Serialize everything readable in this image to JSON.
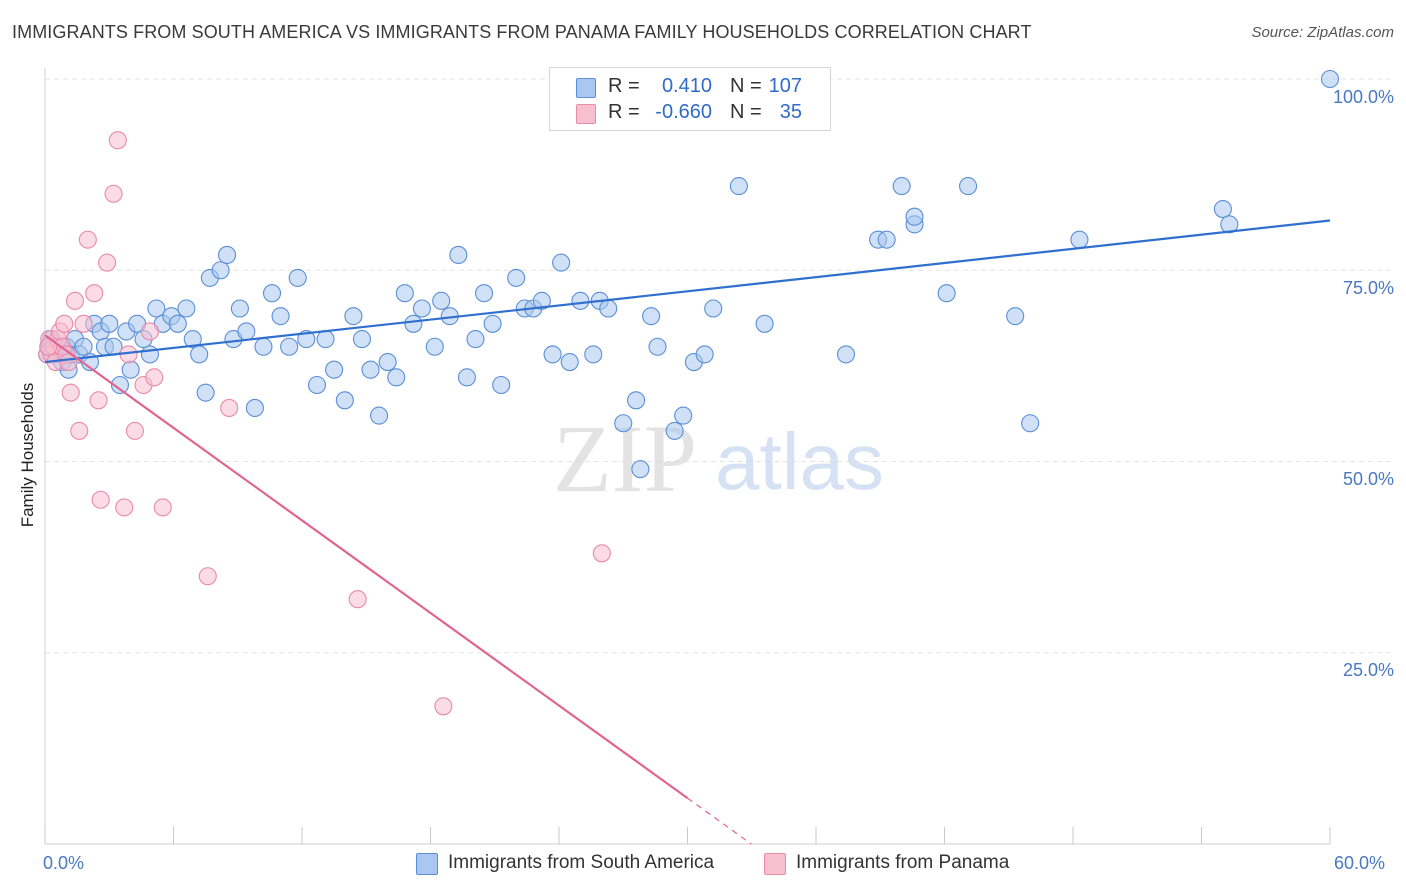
{
  "title": "IMMIGRANTS FROM SOUTH AMERICA VS IMMIGRANTS FROM PANAMA FAMILY HOUSEHOLDS CORRELATION CHART",
  "source": "Source: ZipAtlas.com",
  "watermark": {
    "zip": "ZIP",
    "atlas": "atlas"
  },
  "colors": {
    "blue_fill": "#a9c7ef",
    "blue_stroke": "#5a8fd6",
    "blue_line": "#2f6fcf",
    "pink_fill": "#f7c0d1",
    "pink_stroke": "#e98aa8",
    "pink_line": "#e0648f",
    "tick_text": "#4a78c2",
    "grid": "#e3e3e3"
  },
  "legend": {
    "rows": [
      {
        "r_label": "R =",
        "r_value": "0.410",
        "n_label": "N =",
        "n_value": "107"
      },
      {
        "r_label": "R =",
        "r_value": "-0.660",
        "n_label": "N =",
        "n_value": "35"
      }
    ]
  },
  "bottom_legend": {
    "series1": "Immigrants from South America",
    "series2": "Immigrants from Panama"
  },
  "chart_data": {
    "type": "scatter",
    "title": "IMMIGRANTS FROM SOUTH AMERICA VS IMMIGRANTS FROM PANAMA FAMILY HOUSEHOLDS CORRELATION CHART",
    "xlabel": "",
    "ylabel": "Family Households",
    "xlim": [
      0,
      60
    ],
    "ylim": [
      0,
      100
    ],
    "x_ticks": [
      "0.0%",
      "60.0%"
    ],
    "y_ticks": [
      "100.0%",
      "75.0%",
      "50.0%",
      "25.0%"
    ],
    "y_tick_values": [
      100,
      75,
      50,
      25
    ],
    "series": [
      {
        "name": "Immigrants from South America",
        "R": 0.41,
        "N": 107,
        "trend": {
          "x": [
            0,
            60
          ],
          "y": [
            63.0,
            81.5
          ],
          "dashed_from": null
        },
        "points": [
          [
            0.1,
            64
          ],
          [
            0.2,
            65
          ],
          [
            0.3,
            66
          ],
          [
            0.4,
            64
          ],
          [
            0.5,
            65
          ],
          [
            0.6,
            65
          ],
          [
            0.7,
            64
          ],
          [
            0.8,
            63
          ],
          [
            0.9,
            64
          ],
          [
            1.0,
            65
          ],
          [
            1.1,
            62
          ],
          [
            1.2,
            64
          ],
          [
            1.4,
            66
          ],
          [
            1.6,
            64
          ],
          [
            1.8,
            65
          ],
          [
            2.1,
            63
          ],
          [
            2.3,
            68
          ],
          [
            2.6,
            67
          ],
          [
            2.8,
            65
          ],
          [
            3.0,
            68
          ],
          [
            3.2,
            65
          ],
          [
            3.5,
            60
          ],
          [
            3.8,
            67
          ],
          [
            4.0,
            62
          ],
          [
            4.3,
            68
          ],
          [
            4.6,
            66
          ],
          [
            4.9,
            64
          ],
          [
            5.2,
            70
          ],
          [
            5.5,
            68
          ],
          [
            5.9,
            69
          ],
          [
            6.2,
            68
          ],
          [
            6.6,
            70
          ],
          [
            6.9,
            66
          ],
          [
            7.2,
            64
          ],
          [
            7.5,
            59
          ],
          [
            7.7,
            74
          ],
          [
            8.2,
            75
          ],
          [
            8.5,
            77
          ],
          [
            8.8,
            66
          ],
          [
            9.1,
            70
          ],
          [
            9.4,
            67
          ],
          [
            9.8,
            57
          ],
          [
            10.2,
            65
          ],
          [
            10.6,
            72
          ],
          [
            11.0,
            69
          ],
          [
            11.4,
            65
          ],
          [
            11.8,
            74
          ],
          [
            12.2,
            66
          ],
          [
            12.7,
            60
          ],
          [
            13.1,
            66
          ],
          [
            13.5,
            62
          ],
          [
            14.0,
            58
          ],
          [
            14.4,
            69
          ],
          [
            14.8,
            66
          ],
          [
            15.2,
            62
          ],
          [
            15.6,
            56
          ],
          [
            16.0,
            63
          ],
          [
            16.4,
            61
          ],
          [
            16.8,
            72
          ],
          [
            17.2,
            68
          ],
          [
            17.6,
            70
          ],
          [
            18.2,
            65
          ],
          [
            18.5,
            71
          ],
          [
            18.9,
            69
          ],
          [
            19.3,
            77
          ],
          [
            19.7,
            61
          ],
          [
            20.1,
            66
          ],
          [
            20.5,
            72
          ],
          [
            20.9,
            68
          ],
          [
            21.3,
            60
          ],
          [
            22.0,
            74
          ],
          [
            22.4,
            70
          ],
          [
            22.8,
            70
          ],
          [
            23.2,
            71
          ],
          [
            23.7,
            64
          ],
          [
            24.1,
            76
          ],
          [
            24.5,
            63
          ],
          [
            25.0,
            71
          ],
          [
            25.6,
            64
          ],
          [
            25.9,
            71
          ],
          [
            26.3,
            70
          ],
          [
            27.0,
            55
          ],
          [
            27.6,
            58
          ],
          [
            27.8,
            49
          ],
          [
            28.3,
            69
          ],
          [
            28.6,
            65
          ],
          [
            29.4,
            54
          ],
          [
            29.8,
            56
          ],
          [
            30.3,
            63
          ],
          [
            30.8,
            64
          ],
          [
            31.2,
            70
          ],
          [
            32.4,
            86
          ],
          [
            33.6,
            68
          ],
          [
            37.4,
            64
          ],
          [
            38.9,
            79
          ],
          [
            39.3,
            79
          ],
          [
            40.0,
            86
          ],
          [
            40.6,
            81
          ],
          [
            40.6,
            82
          ],
          [
            42.1,
            72
          ],
          [
            43.1,
            86
          ],
          [
            45.3,
            69
          ],
          [
            46.0,
            55
          ],
          [
            55.0,
            83
          ],
          [
            55.3,
            81
          ],
          [
            60.0,
            100
          ],
          [
            48.3,
            79
          ]
        ]
      },
      {
        "name": "Immigrants from Panama",
        "R": -0.66,
        "N": 35,
        "trend": {
          "x": [
            0,
            60
          ],
          "y": [
            66.5,
            -54.5
          ],
          "solid_until_x": 30.0
        },
        "points": [
          [
            0.1,
            64
          ],
          [
            0.2,
            66
          ],
          [
            0.3,
            64
          ],
          [
            0.4,
            65
          ],
          [
            0.5,
            63
          ],
          [
            0.6,
            66
          ],
          [
            0.7,
            67
          ],
          [
            0.8,
            65
          ],
          [
            0.9,
            68
          ],
          [
            1.0,
            64
          ],
          [
            1.1,
            63
          ],
          [
            1.2,
            59
          ],
          [
            1.4,
            71
          ],
          [
            1.6,
            54
          ],
          [
            1.8,
            68
          ],
          [
            2.0,
            79
          ],
          [
            2.3,
            72
          ],
          [
            2.5,
            58
          ],
          [
            2.6,
            45
          ],
          [
            2.9,
            76
          ],
          [
            3.2,
            85
          ],
          [
            3.4,
            92
          ],
          [
            3.7,
            44
          ],
          [
            3.9,
            64
          ],
          [
            4.2,
            54
          ],
          [
            4.6,
            60
          ],
          [
            4.9,
            67
          ],
          [
            5.1,
            61
          ],
          [
            5.5,
            44
          ],
          [
            7.6,
            35
          ],
          [
            8.6,
            57
          ],
          [
            14.6,
            32
          ],
          [
            18.6,
            18
          ],
          [
            26.0,
            38
          ],
          [
            0.15,
            65
          ]
        ]
      }
    ]
  }
}
